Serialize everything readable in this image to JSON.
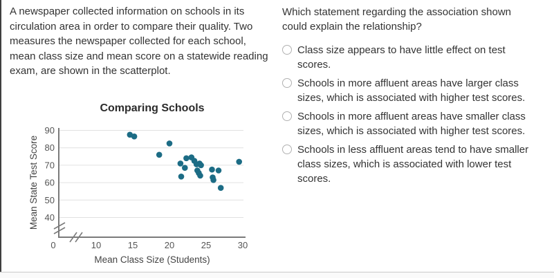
{
  "page": {
    "intro_paragraph": "A newspaper collected information on schools in its circulation area in order to compare their quality. Two measures the newspaper collected for each school, mean class size and mean score on a statewide reading exam, are shown in the scatterplot.",
    "question": "Which statement regarding the association shown could explain the relationship?",
    "options": [
      {
        "label": "Class size appears to have little effect on test scores."
      },
      {
        "label": "Schools in more affluent areas have larger class sizes, which is associated with higher test scores."
      },
      {
        "label": "Schools in more affluent areas have smaller class sizes, which is associated with higher test scores."
      },
      {
        "label": "Schools in less affluent areas tend to have smaller class sizes, which is associated with lower test scores."
      }
    ]
  },
  "chart_data": {
    "type": "scatter",
    "title": "Comparing Schools",
    "xlabel": "Mean Class Size (Students)",
    "ylabel": "Mean State Test Score",
    "x_ticks": [
      0,
      10,
      15,
      20,
      25,
      30
    ],
    "y_ticks": [
      40,
      50,
      60,
      70,
      80,
      90
    ],
    "xlim": [
      10,
      30
    ],
    "ylim": [
      40,
      90
    ],
    "axis_breaks": true,
    "grid": "horizontal",
    "legend": "none",
    "point_color": "#1c6c85",
    "axis_color": "#7a7a7a",
    "grid_color": "#e0e0e0",
    "points": [
      [
        14.6,
        87.5
      ],
      [
        15.2,
        86.5
      ],
      [
        20.0,
        82.5
      ],
      [
        18.6,
        76.0
      ],
      [
        22.3,
        74.0
      ],
      [
        23.0,
        74.5
      ],
      [
        21.5,
        71.0
      ],
      [
        22.1,
        68.5
      ],
      [
        23.4,
        72.5
      ],
      [
        23.7,
        70.5
      ],
      [
        24.1,
        71.0
      ],
      [
        24.3,
        70.0
      ],
      [
        23.8,
        67.0
      ],
      [
        24.0,
        65.5
      ],
      [
        24.2,
        64.0
      ],
      [
        21.6,
        63.5
      ],
      [
        25.8,
        67.5
      ],
      [
        26.7,
        67.0
      ],
      [
        25.9,
        63.0
      ],
      [
        26.0,
        61.5
      ],
      [
        27.0,
        57.0
      ],
      [
        29.5,
        72.0
      ]
    ]
  }
}
